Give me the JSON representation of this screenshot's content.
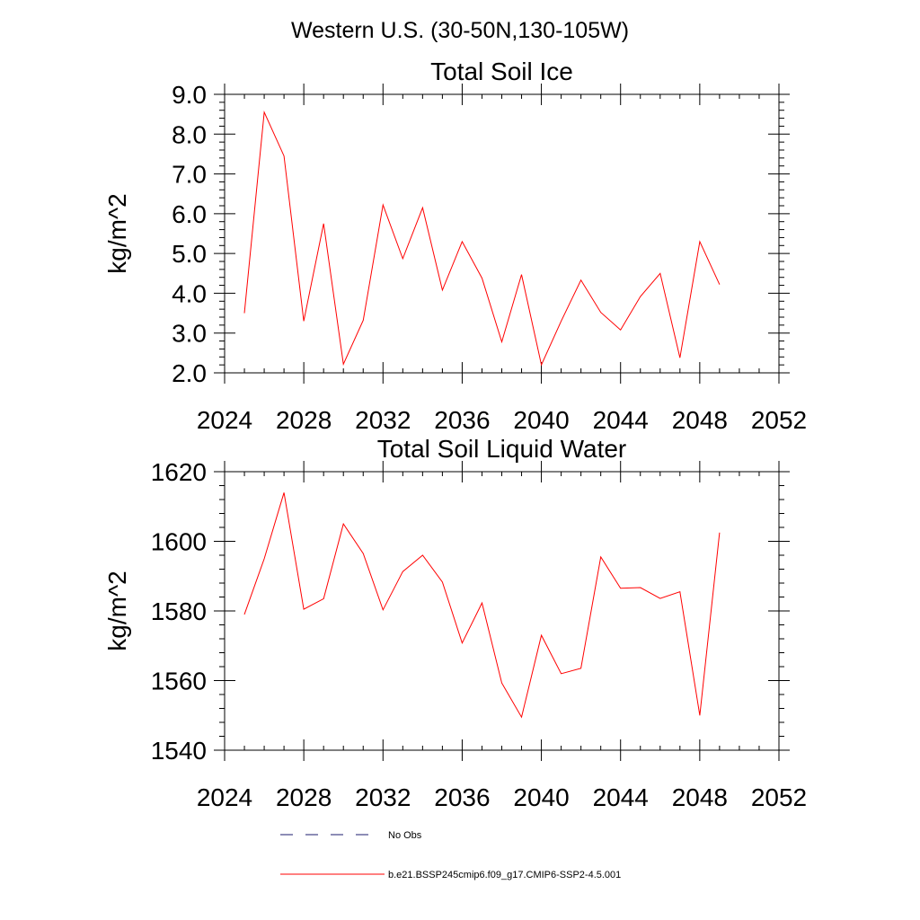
{
  "page_title": "Western U.S. (30-50N,130-105W)",
  "legend": [
    {
      "label": "No Obs",
      "style": "dashed",
      "color": "#1b1b6e"
    },
    {
      "label": "b.e21.BSSP245cmip6.f09_g17.CMIP6-SSP2-4.5.001",
      "style": "solid",
      "color": "#ff0000"
    }
  ],
  "chart_data": [
    {
      "type": "line",
      "title": "Total Soil Ice",
      "xlabel": "",
      "ylabel": "kg/m^2",
      "xlim": [
        2024,
        2052
      ],
      "ylim": [
        2.0,
        9.0
      ],
      "xticks": [
        2024,
        2028,
        2032,
        2036,
        2040,
        2044,
        2048,
        2052
      ],
      "yticks": [
        2.0,
        3.0,
        4.0,
        5.0,
        6.0,
        7.0,
        8.0,
        9.0
      ],
      "ytick_labels": [
        "2.0",
        "3.0",
        "4.0",
        "5.0",
        "6.0",
        "7.0",
        "8.0",
        "9.0"
      ],
      "grid": false,
      "series": [
        {
          "color": "#ff0000",
          "x": [
            2025,
            2026,
            2027,
            2028,
            2029,
            2030,
            2031,
            2032,
            2033,
            2034,
            2035,
            2036,
            2037,
            2038,
            2039,
            2040,
            2041,
            2042,
            2043,
            2044,
            2045,
            2046,
            2047,
            2048,
            2049
          ],
          "y": [
            3.5,
            8.55,
            7.45,
            3.3,
            5.75,
            2.22,
            3.32,
            6.22,
            4.87,
            6.15,
            4.08,
            5.3,
            4.38,
            2.78,
            4.47,
            2.2,
            3.3,
            4.33,
            3.52,
            3.08,
            3.92,
            4.5,
            2.38,
            5.3,
            4.22
          ]
        }
      ]
    },
    {
      "type": "line",
      "title": "Total Soil Liquid Water",
      "xlabel": "",
      "ylabel": "kg/m^2",
      "xlim": [
        2024,
        2052
      ],
      "ylim": [
        1540,
        1620
      ],
      "xticks": [
        2024,
        2028,
        2032,
        2036,
        2040,
        2044,
        2048,
        2052
      ],
      "yticks": [
        1540,
        1560,
        1580,
        1600,
        1620
      ],
      "ytick_labels": [
        "1540",
        "1560",
        "1580",
        "1600",
        "1620"
      ],
      "grid": false,
      "series": [
        {
          "color": "#ff0000",
          "x": [
            2025,
            2026,
            2027,
            2028,
            2029,
            2030,
            2031,
            2032,
            2033,
            2034,
            2035,
            2036,
            2037,
            2038,
            2039,
            2040,
            2041,
            2042,
            2043,
            2044,
            2045,
            2046,
            2047,
            2048,
            2049
          ],
          "y": [
            1579,
            1595,
            1614,
            1580.5,
            1583.5,
            1605,
            1596.5,
            1580.3,
            1591.3,
            1596,
            1588.3,
            1570.8,
            1582.3,
            1559.3,
            1549.5,
            1573,
            1562,
            1563.5,
            1595.5,
            1586.5,
            1586.7,
            1583.6,
            1585.5,
            1550,
            1602.5
          ]
        }
      ]
    }
  ]
}
